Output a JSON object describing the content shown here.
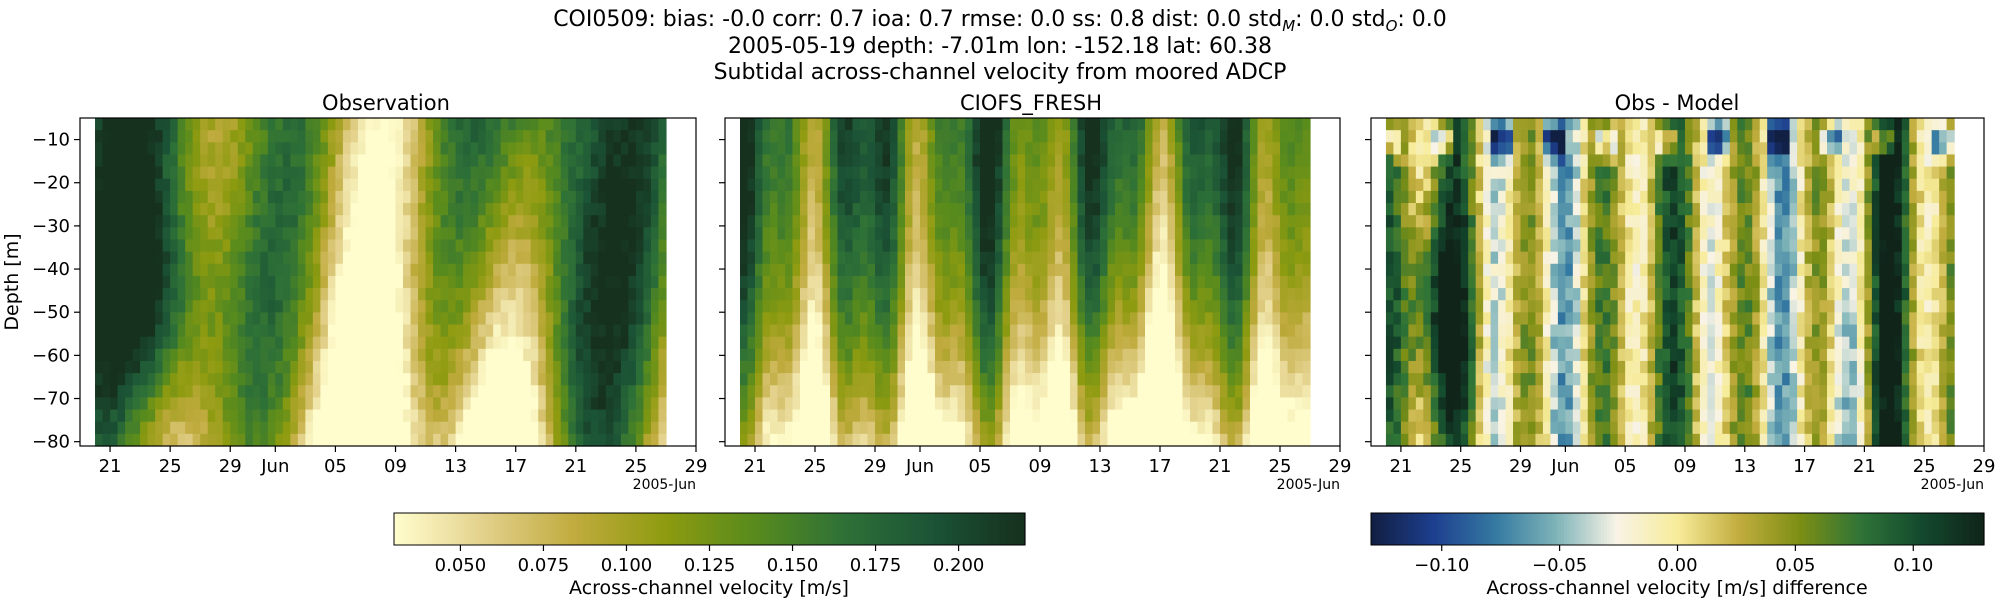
{
  "figure": {
    "title_lines": [
      "COI0509: bias: -0.0  corr: 0.7  ioa: 0.7  rmse: 0.0  ss: 0.8  dist: 0.0  std",
      "2005-05-19 depth: -7.01m lon: -152.18 lat: 60.38",
      "Subtidal across-channel velocity from moored ADCP"
    ],
    "title_stats": {
      "prefix": "COI0509: bias: -0.0  corr: 0.7  ioa: 0.7  rmse: 0.0  ss: 0.8  dist: 0.0  std",
      "sub_m": "M",
      "mid": ": 0.0  std",
      "sub_o": "O",
      "suffix": ": 0.0"
    }
  },
  "chart_data": [
    {
      "type": "heatmap",
      "title": "Observation",
      "ylabel": "Depth [m]",
      "xlabel": "",
      "xticks": [
        "21",
        "25",
        "29",
        "Jun",
        "05",
        "09",
        "13",
        "17",
        "21",
        "25",
        "29"
      ],
      "x_offset_label": "2005-Jun",
      "yticks": [
        "-10",
        "-20",
        "-30",
        "-40",
        "-50",
        "-60",
        "-70",
        "-80"
      ],
      "ylim": [
        -81,
        -5
      ],
      "xlim": [
        "2005-05-19",
        "2005-06-29"
      ],
      "data_range": [
        "2005-05-20",
        "2005-06-27"
      ],
      "colormap": "speed",
      "clim": [
        0.03,
        0.22
      ],
      "grid": false
    },
    {
      "type": "heatmap",
      "title": "CIOFS_FRESH",
      "ylabel": "",
      "xticks": [
        "21",
        "25",
        "29",
        "Jun",
        "05",
        "09",
        "13",
        "17",
        "21",
        "25",
        "29"
      ],
      "x_offset_label": "2005-Jun",
      "yticks": [
        "-10",
        "-20",
        "-30",
        "-40",
        "-50",
        "-60",
        "-70",
        "-80"
      ],
      "ylim": [
        -81,
        -5
      ],
      "xlim": [
        "2005-05-19",
        "2005-06-29"
      ],
      "data_range": [
        "2005-05-20",
        "2005-06-27"
      ],
      "colormap": "speed",
      "clim": [
        0.03,
        0.22
      ],
      "grid": false
    },
    {
      "type": "heatmap",
      "title": "Obs - Model",
      "ylabel": "",
      "xticks": [
        "21",
        "25",
        "29",
        "Jun",
        "05",
        "09",
        "13",
        "17",
        "21",
        "25",
        "29"
      ],
      "x_offset_label": "2005-Jun",
      "yticks": [
        "-10",
        "-20",
        "-30",
        "-40",
        "-50",
        "-60",
        "-70",
        "-80"
      ],
      "ylim": [
        -81,
        -5
      ],
      "xlim": [
        "2005-05-19",
        "2005-06-29"
      ],
      "data_range": [
        "2005-05-20",
        "2005-06-27"
      ],
      "colormap": "delta",
      "clim": [
        -0.13,
        0.13
      ],
      "grid": false
    }
  ],
  "colorbars": [
    {
      "label": "Across-channel velocity [m/s]",
      "ticks": [
        "0.050",
        "0.075",
        "0.100",
        "0.125",
        "0.150",
        "0.175",
        "0.200"
      ],
      "tick_values": [
        0.05,
        0.075,
        0.1,
        0.125,
        0.15,
        0.175,
        0.2
      ],
      "range": [
        0.03,
        0.22
      ],
      "colormap": "speed"
    },
    {
      "label": "Across-channel velocity [m/s] difference",
      "ticks": [
        "−0.10",
        "−0.05",
        "0.00",
        "0.05",
        "0.10"
      ],
      "tick_values": [
        -0.1,
        -0.05,
        0.0,
        0.05,
        0.1
      ],
      "range": [
        -0.13,
        0.13
      ],
      "colormap": "delta"
    }
  ],
  "colors": {
    "speed": [
      "#fffdcd",
      "#e2d08a",
      "#c0ab3e",
      "#8e9b10",
      "#588b1d",
      "#2e7137",
      "#1b5336",
      "#16311e"
    ],
    "delta": [
      "#111f43",
      "#1e3f8f",
      "#3479a1",
      "#7db3b8",
      "#f8f3e6",
      "#f7ec9a",
      "#c2ad3f",
      "#7d8f14",
      "#2f7437",
      "#134a2e",
      "#10241a"
    ]
  }
}
